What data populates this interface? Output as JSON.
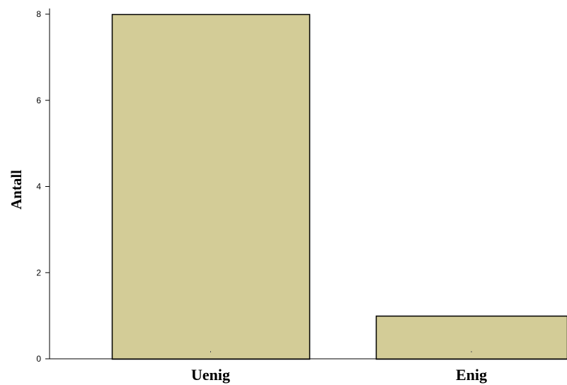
{
  "chart_data": {
    "type": "bar",
    "categories": [
      "Uenig",
      "Enig"
    ],
    "values": [
      8,
      1
    ],
    "title": "",
    "xlabel": "",
    "ylabel": "Antall",
    "ylim": [
      0,
      8
    ],
    "yticks": [
      0,
      2,
      4,
      6,
      8
    ],
    "grid": false,
    "legend": "none",
    "colors": {
      "bar_fill": "#d3cc97",
      "bar_stroke": "#000000",
      "axis": "#000000"
    }
  }
}
